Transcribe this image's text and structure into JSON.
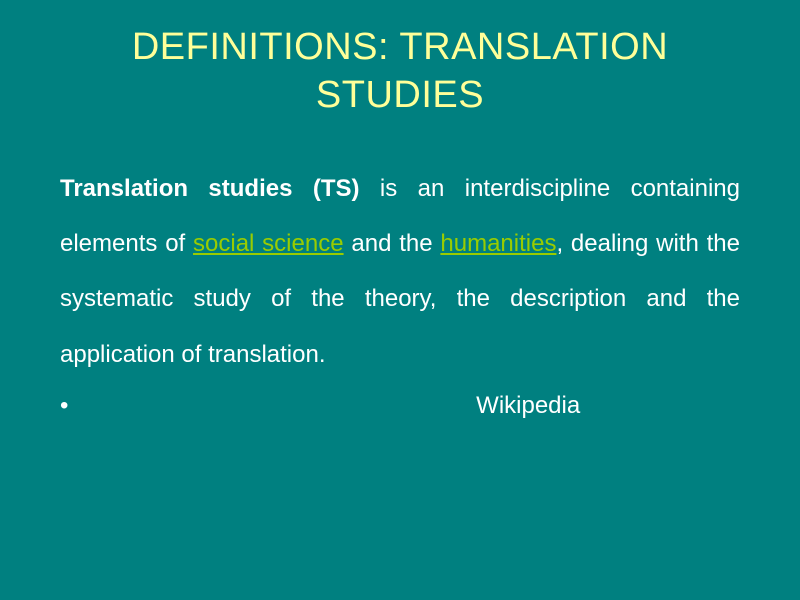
{
  "colors": {
    "background": "#008080",
    "title": "#ffff99",
    "body_text": "#ffffff",
    "link": "#99cc00"
  },
  "typography": {
    "title_fontsize": 38,
    "body_fontsize": 24,
    "font_family": "Arial"
  },
  "title": "DEFINITIONS: TRANSLATION STUDIES",
  "body": {
    "bold_lead": "Translation studies (TS)",
    "segment1": " is an interdiscipline containing elements of ",
    "link1": "social science",
    "segment2": " and the ",
    "link2": "humanities",
    "segment3": ", dealing with the systematic study of the theory, the description and the application of translation."
  },
  "citation": {
    "bullet": "•",
    "source": "Wikipedia"
  }
}
